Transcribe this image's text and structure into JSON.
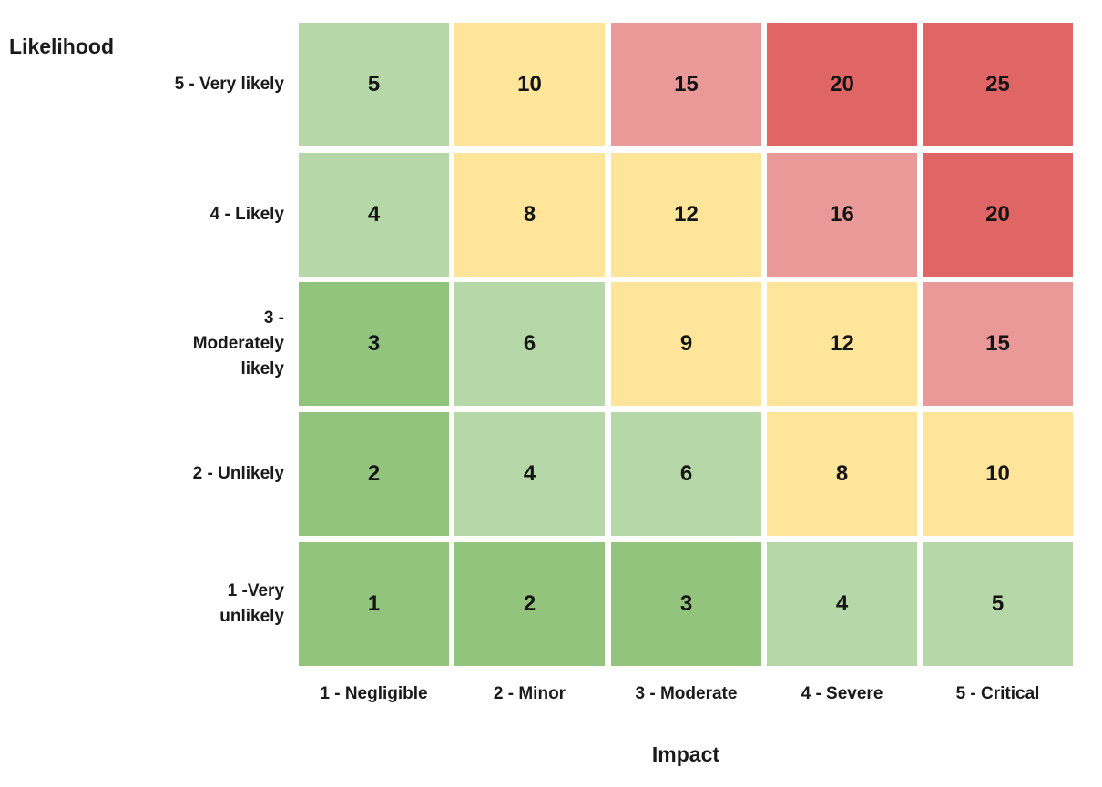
{
  "chart_data": {
    "type": "heatmap",
    "ylabel": "Likelihood",
    "xlabel": "Impact",
    "x_categories": [
      "1 - Negligible",
      "2 - Minor",
      "3 - Moderate",
      "4 - Severe",
      "5 - Critical"
    ],
    "y_categories": [
      "5 - Very likely",
      "4 - Likely",
      "3 - Moderately likely",
      "2 - Unlikely",
      "1 -Very unlikely"
    ],
    "y_label_lines": [
      [
        "5 - Very likely"
      ],
      [
        "4 - Likely"
      ],
      [
        "3 -",
        "Moderately",
        "likely"
      ],
      [
        "2 - Unlikely"
      ],
      [
        "1 -Very",
        "unlikely"
      ]
    ],
    "values": [
      [
        5,
        10,
        15,
        20,
        25
      ],
      [
        4,
        8,
        12,
        16,
        20
      ],
      [
        3,
        6,
        9,
        12,
        15
      ],
      [
        2,
        4,
        6,
        8,
        10
      ],
      [
        1,
        2,
        3,
        4,
        5
      ]
    ],
    "color_scale": [
      {
        "max": 3,
        "color": "#93c47d"
      },
      {
        "max": 6,
        "color": "#b6d7a8"
      },
      {
        "max": 12,
        "color": "#ffe599"
      },
      {
        "max": 16,
        "color": "#ea9999"
      },
      {
        "max": 25,
        "color": "#e06666"
      }
    ],
    "color_overrides": [
      {
        "row": 0,
        "col": 0,
        "color": "#b6d7a8"
      },
      {
        "row": 1,
        "col": 0,
        "color": "#b6d7a8"
      },
      {
        "row": 0,
        "col": 1,
        "color": "#ffe599"
      },
      {
        "row": 3,
        "col": 4,
        "color": "#ffe599"
      }
    ]
  }
}
